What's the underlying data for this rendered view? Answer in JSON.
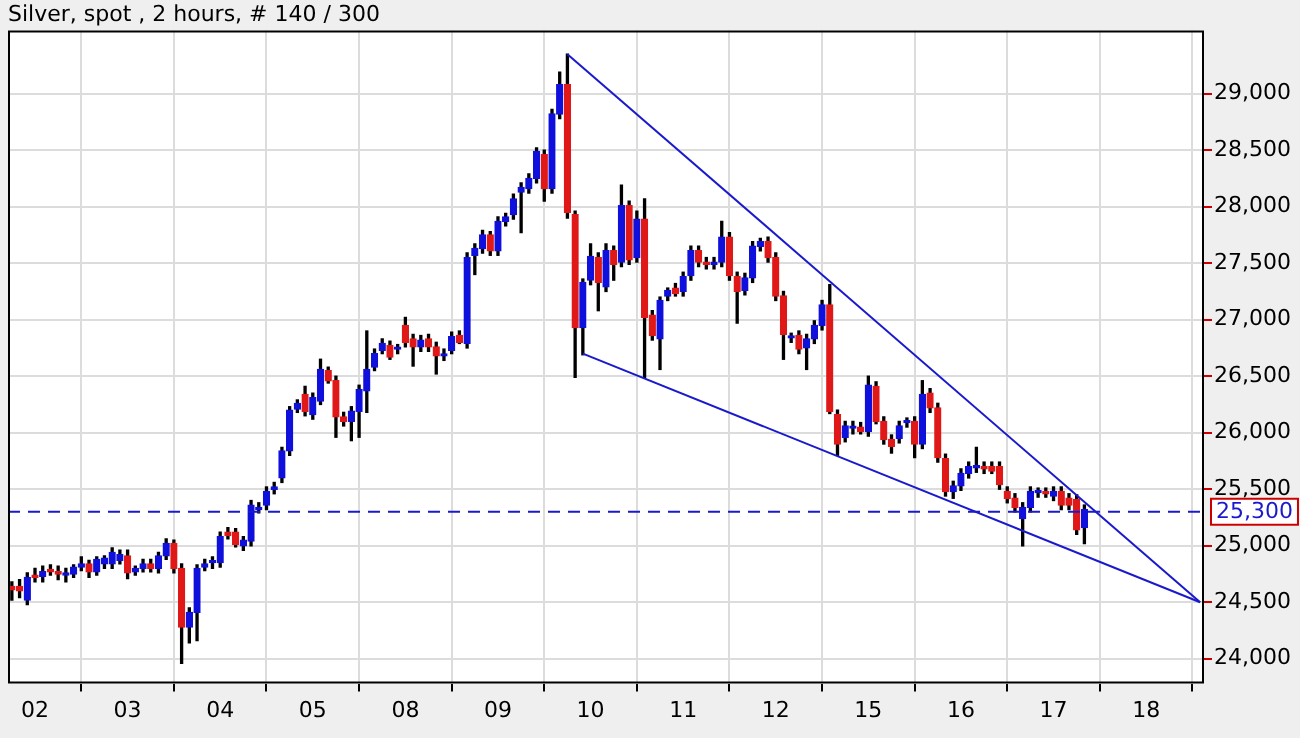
{
  "chart_data": {
    "type": "candlestick",
    "title": "Silver, spot , 2 hours, # 140 / 300",
    "categories": [
      null,
      null,
      null,
      "02",
      null,
      null,
      null,
      null,
      null,
      null,
      null,
      null,
      null,
      null,
      null,
      "03",
      null,
      null,
      null,
      null,
      null,
      null,
      null,
      null,
      null,
      null,
      null,
      "04",
      null,
      null,
      null,
      null,
      null,
      null,
      null,
      null,
      null,
      null,
      null,
      "05",
      null,
      null,
      null,
      null,
      null,
      null,
      null,
      null,
      null,
      null,
      null,
      "08",
      null,
      null,
      null,
      null,
      null,
      null,
      null,
      null,
      null,
      null,
      null,
      "09",
      null,
      null,
      null,
      null,
      null,
      null,
      null,
      null,
      null,
      null,
      null,
      "10",
      null,
      null,
      null,
      null,
      null,
      null,
      null,
      null,
      null,
      null,
      null,
      "11",
      null,
      null,
      null,
      null,
      null,
      null,
      null,
      null,
      null,
      null,
      null,
      "12",
      null,
      null,
      null,
      null,
      null,
      null,
      null,
      null,
      null,
      null,
      null,
      "15",
      null,
      null,
      null,
      null,
      null,
      null,
      null,
      null,
      null,
      null,
      null,
      "16",
      null,
      null,
      null,
      null,
      null,
      null,
      null,
      null,
      null,
      null,
      null,
      "17",
      null,
      null,
      null,
      null,
      null,
      null,
      null,
      null,
      null,
      null,
      null,
      "18",
      null,
      null,
      null,
      null,
      null,
      null,
      null
    ],
    "ohlc": [
      [
        24640,
        24680,
        24520,
        24610
      ],
      [
        24640,
        24700,
        24540,
        24600
      ],
      [
        24520,
        24760,
        24480,
        24720
      ],
      [
        24740,
        24800,
        24680,
        24720
      ],
      [
        24730,
        24820,
        24680,
        24770
      ],
      [
        24790,
        24830,
        24740,
        24770
      ],
      [
        24770,
        24820,
        24700,
        24750
      ],
      [
        24740,
        24800,
        24680,
        24760
      ],
      [
        24750,
        24830,
        24720,
        24810
      ],
      [
        24810,
        24900,
        24780,
        24840
      ],
      [
        24840,
        24870,
        24720,
        24770
      ],
      [
        24770,
        24900,
        24740,
        24880
      ],
      [
        24840,
        24910,
        24800,
        24890
      ],
      [
        24840,
        24980,
        24800,
        24940
      ],
      [
        24870,
        24960,
        24840,
        24920
      ],
      [
        24910,
        24960,
        24710,
        24760
      ],
      [
        24770,
        24820,
        24740,
        24800
      ],
      [
        24800,
        24880,
        24770,
        24840
      ],
      [
        24840,
        24880,
        24770,
        24800
      ],
      [
        24800,
        24940,
        24760,
        24910
      ],
      [
        24910,
        25060,
        24880,
        25020
      ],
      [
        25020,
        25050,
        24760,
        24800
      ],
      [
        24800,
        24840,
        23960,
        24280
      ],
      [
        24280,
        24450,
        24140,
        24410
      ],
      [
        24410,
        24830,
        24160,
        24800
      ],
      [
        24810,
        24880,
        24780,
        24840
      ],
      [
        24850,
        24900,
        24800,
        24860
      ],
      [
        24850,
        25120,
        24810,
        25080
      ],
      [
        25120,
        25160,
        25060,
        25090
      ],
      [
        25120,
        25150,
        24990,
        25010
      ],
      [
        25000,
        25080,
        24960,
        25050
      ],
      [
        25040,
        25400,
        25000,
        25360
      ],
      [
        25320,
        25380,
        25290,
        25340
      ],
      [
        25360,
        25520,
        25320,
        25480
      ],
      [
        25500,
        25560,
        25460,
        25520
      ],
      [
        25600,
        25870,
        25560,
        25840
      ],
      [
        25840,
        26230,
        25800,
        26200
      ],
      [
        26210,
        26290,
        26180,
        26260
      ],
      [
        26340,
        26410,
        26150,
        26190
      ],
      [
        26160,
        26350,
        26120,
        26310
      ],
      [
        26280,
        26650,
        26250,
        26560
      ],
      [
        26550,
        26580,
        26440,
        26460
      ],
      [
        26460,
        26500,
        25960,
        26140
      ],
      [
        26140,
        26180,
        26060,
        26100
      ],
      [
        26100,
        26230,
        25930,
        26190
      ],
      [
        26190,
        26420,
        25960,
        26380
      ],
      [
        26370,
        26900,
        26180,
        26560
      ],
      [
        26580,
        26740,
        26550,
        26700
      ],
      [
        26730,
        26830,
        26700,
        26790
      ],
      [
        26770,
        26810,
        26650,
        26670
      ],
      [
        26740,
        26780,
        26700,
        26740
      ],
      [
        26950,
        27020,
        26760,
        26800
      ],
      [
        26830,
        26870,
        26590,
        26760
      ],
      [
        26760,
        26860,
        26720,
        26820
      ],
      [
        26830,
        26870,
        26720,
        26760
      ],
      [
        26760,
        26800,
        26520,
        26680
      ],
      [
        26680,
        26740,
        26640,
        26690
      ],
      [
        26730,
        26890,
        26700,
        26850
      ],
      [
        26860,
        26900,
        26790,
        26800
      ],
      [
        26790,
        27590,
        26750,
        27550
      ],
      [
        27570,
        27670,
        27400,
        27630
      ],
      [
        27630,
        27790,
        27590,
        27750
      ],
      [
        27750,
        27780,
        27570,
        27610
      ],
      [
        27610,
        27910,
        27570,
        27870
      ],
      [
        27870,
        27940,
        27830,
        27910
      ],
      [
        27930,
        28110,
        27890,
        28070
      ],
      [
        28130,
        28210,
        27770,
        28170
      ],
      [
        28160,
        28290,
        28120,
        28250
      ],
      [
        28250,
        28520,
        28210,
        28490
      ],
      [
        28460,
        28500,
        28050,
        28160
      ],
      [
        28160,
        28860,
        28120,
        28820
      ],
      [
        28820,
        29190,
        28780,
        29080
      ],
      [
        29080,
        29350,
        27900,
        27950
      ],
      [
        27930,
        27960,
        26490,
        26930
      ],
      [
        26930,
        27360,
        26690,
        27330
      ],
      [
        27350,
        27670,
        27310,
        27560
      ],
      [
        27550,
        27590,
        27080,
        27330
      ],
      [
        27290,
        27670,
        27250,
        27610
      ],
      [
        27610,
        27650,
        27350,
        27490
      ],
      [
        27510,
        28190,
        27470,
        28010
      ],
      [
        28010,
        28050,
        27490,
        27530
      ],
      [
        27550,
        27960,
        27510,
        27890
      ],
      [
        27890,
        28070,
        26490,
        27020
      ],
      [
        27040,
        27080,
        26820,
        26860
      ],
      [
        26830,
        27200,
        26560,
        27170
      ],
      [
        27210,
        27280,
        27170,
        27260
      ],
      [
        27280,
        27320,
        27210,
        27230
      ],
      [
        27250,
        27420,
        27210,
        27380
      ],
      [
        27390,
        27650,
        27350,
        27610
      ],
      [
        27610,
        27650,
        27470,
        27510
      ],
      [
        27510,
        27550,
        27450,
        27490
      ],
      [
        27490,
        27550,
        27450,
        27510
      ],
      [
        27510,
        27870,
        27470,
        27730
      ],
      [
        27730,
        27770,
        27350,
        27390
      ],
      [
        27380,
        27420,
        26970,
        27250
      ],
      [
        27260,
        27410,
        27220,
        27370
      ],
      [
        27370,
        27690,
        27330,
        27650
      ],
      [
        27650,
        27720,
        27610,
        27690
      ],
      [
        27690,
        27730,
        27510,
        27550
      ],
      [
        27550,
        27590,
        27170,
        27210
      ],
      [
        27210,
        27250,
        26650,
        26870
      ],
      [
        26840,
        26880,
        26800,
        26840
      ],
      [
        26860,
        26900,
        26700,
        26740
      ],
      [
        26750,
        26870,
        26560,
        26830
      ],
      [
        26830,
        26990,
        26790,
        26950
      ],
      [
        26950,
        27170,
        26910,
        27130
      ],
      [
        27130,
        27310,
        26170,
        26190
      ],
      [
        26160,
        26200,
        25800,
        25900
      ],
      [
        25960,
        26100,
        25920,
        26060
      ],
      [
        26040,
        26100,
        25990,
        26050
      ],
      [
        26050,
        26090,
        25990,
        26010
      ],
      [
        26010,
        26500,
        25970,
        26420
      ],
      [
        26410,
        26450,
        26080,
        26100
      ],
      [
        26100,
        26140,
        25900,
        25940
      ],
      [
        25940,
        25980,
        25820,
        25880
      ],
      [
        25950,
        26100,
        25910,
        26060
      ],
      [
        26090,
        26130,
        26050,
        26090
      ],
      [
        26100,
        26140,
        25780,
        25900
      ],
      [
        25900,
        26460,
        25860,
        26340
      ],
      [
        26350,
        26390,
        26180,
        26220
      ],
      [
        26220,
        26260,
        25740,
        25780
      ],
      [
        25770,
        25810,
        25440,
        25480
      ],
      [
        25480,
        25570,
        25420,
        25530
      ],
      [
        25530,
        25680,
        25490,
        25640
      ],
      [
        25640,
        25740,
        25600,
        25700
      ],
      [
        25690,
        25870,
        25650,
        25700
      ],
      [
        25700,
        25740,
        25640,
        25680
      ],
      [
        25700,
        25740,
        25640,
        25660
      ],
      [
        25700,
        25740,
        25500,
        25540
      ],
      [
        25480,
        25520,
        25380,
        25420
      ],
      [
        25420,
        25460,
        25300,
        25340
      ],
      [
        25240,
        25380,
        25000,
        25340
      ],
      [
        25340,
        25520,
        25300,
        25480
      ],
      [
        25470,
        25510,
        25430,
        25480
      ],
      [
        25470,
        25510,
        25430,
        25460
      ],
      [
        25440,
        25520,
        25400,
        25480
      ],
      [
        25480,
        25520,
        25320,
        25360
      ],
      [
        25420,
        25460,
        25320,
        25360
      ],
      [
        25410,
        25450,
        25100,
        25140
      ],
      [
        25160,
        25360,
        25020,
        25320
      ],
      null,
      null,
      null,
      null,
      null,
      null,
      null,
      null,
      null,
      null,
      null,
      null,
      null,
      null,
      null
    ],
    "series": [
      {
        "type": "line",
        "color": "#1a1acc",
        "values": [
          null,
          null,
          null,
          null,
          null,
          null,
          null,
          null,
          null,
          null,
          null,
          null,
          null,
          null,
          null,
          null,
          null,
          null,
          null,
          null,
          null,
          null,
          null,
          null,
          null,
          null,
          null,
          null,
          null,
          null,
          null,
          null,
          null,
          null,
          null,
          null,
          null,
          null,
          null,
          null,
          null,
          null,
          null,
          null,
          null,
          null,
          null,
          null,
          null,
          null,
          null,
          null,
          null,
          null,
          null,
          null,
          null,
          null,
          null,
          null,
          null,
          null,
          null,
          null,
          null,
          null,
          null,
          null,
          null,
          null,
          null,
          null,
          29350,
          null,
          null,
          null,
          null,
          null,
          null,
          null,
          null,
          null,
          null,
          null,
          null,
          null,
          null,
          null,
          null,
          null,
          null,
          null,
          null,
          null,
          null,
          null,
          null,
          null,
          null,
          null,
          null,
          null,
          null,
          null,
          null,
          null,
          null,
          null,
          null,
          null,
          null,
          null,
          null,
          null,
          null,
          null,
          null,
          null,
          null,
          null,
          null,
          null,
          null,
          null,
          null,
          null,
          null,
          null,
          null,
          null,
          null,
          null,
          null,
          null,
          null,
          null,
          null,
          null,
          null,
          null,
          null,
          null,
          null,
          null,
          null,
          null,
          null,
          null,
          null,
          null,
          null,
          null,
          null,
          null,
          24500
        ]
      },
      {
        "type": "line",
        "color": "#1a1acc",
        "values": [
          null,
          null,
          null,
          null,
          null,
          null,
          null,
          null,
          null,
          null,
          null,
          null,
          null,
          null,
          null,
          null,
          null,
          null,
          null,
          null,
          null,
          null,
          null,
          null,
          null,
          null,
          null,
          null,
          null,
          null,
          null,
          null,
          null,
          null,
          null,
          null,
          null,
          null,
          null,
          null,
          null,
          null,
          null,
          null,
          null,
          null,
          null,
          null,
          null,
          null,
          null,
          null,
          null,
          null,
          null,
          null,
          null,
          null,
          null,
          null,
          null,
          null,
          null,
          null,
          null,
          null,
          null,
          null,
          null,
          null,
          null,
          null,
          null,
          null,
          26700,
          null,
          null,
          null,
          null,
          null,
          null,
          null,
          null,
          null,
          null,
          null,
          null,
          null,
          null,
          null,
          null,
          null,
          null,
          null,
          null,
          null,
          null,
          null,
          null,
          null,
          null,
          null,
          null,
          null,
          null,
          null,
          null,
          null,
          null,
          null,
          null,
          null,
          null,
          null,
          null,
          null,
          null,
          null,
          null,
          null,
          null,
          null,
          null,
          null,
          null,
          null,
          null,
          null,
          null,
          null,
          null,
          null,
          null,
          null,
          null,
          null,
          null,
          null,
          null,
          null,
          null,
          null,
          null,
          null,
          null,
          null,
          null,
          null,
          null,
          null,
          null,
          null,
          null,
          null,
          24500
        ]
      }
    ],
    "ref_lines": [
      {
        "axis": "y",
        "value": 25300,
        "label": "25,300",
        "color": "#1a1acc",
        "line_style": "dashed"
      }
    ],
    "ylim": [
      23780,
      29560
    ],
    "yticks": [
      {
        "value": 24000,
        "label": "24,000"
      },
      {
        "value": 24500,
        "label": "24,500"
      },
      {
        "value": 25000,
        "label": "25,000"
      },
      {
        "value": 25500,
        "label": "25,500"
      },
      {
        "value": 26000,
        "label": "26,000"
      },
      {
        "value": 26500,
        "label": "26,500"
      },
      {
        "value": 27000,
        "label": "27,000"
      },
      {
        "value": 27500,
        "label": "27,500"
      },
      {
        "value": 28000,
        "label": "28,000"
      },
      {
        "value": 28500,
        "label": "28,500"
      },
      {
        "value": 29000,
        "label": "29,000"
      }
    ],
    "grid": true
  }
}
